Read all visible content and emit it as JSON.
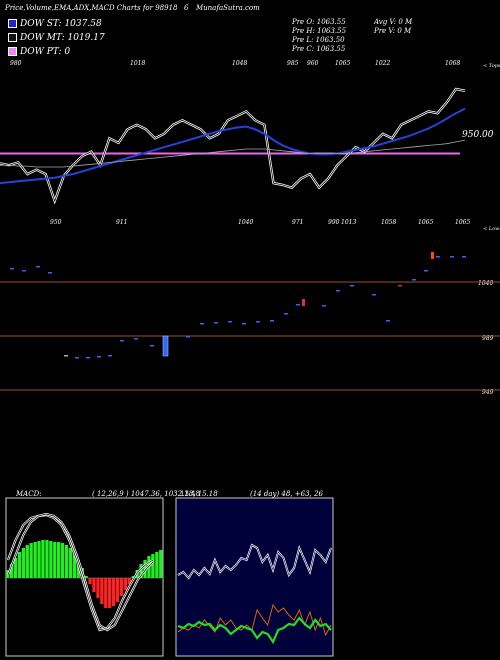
{
  "header": {
    "title": "Price,Volume,EMA,ADX,MACD Charts for 98918",
    "code": "6",
    "site": "MunafaSutra.com"
  },
  "legend": [
    {
      "label": "DOW ST: 1037.58",
      "color": "#2222cc"
    },
    {
      "label": "DOW MT: 1019.17",
      "color": "#111111"
    },
    {
      "label": "DOW PT: 0",
      "color": "#ee88ee"
    }
  ],
  "prev": {
    "open": "Pre   O: 1063.55",
    "high": "Pre   H: 1063.55",
    "low": "Pre   L: 1063.50",
    "close": "Pre   C: 1063.55",
    "avg_vol": "Avg V: 0   M",
    "prev_vol": "Pre   V: 0   M"
  },
  "price_panel": {
    "top_labels": [
      "980",
      "1018",
      "1048",
      "985",
      "960",
      "1065",
      "1022",
      "1068"
    ],
    "bottom_labels": [
      "950",
      "911",
      "1040",
      "971",
      "990",
      "1013",
      "1058",
      "1065"
    ],
    "right_label": "950.00",
    "top_tag": "< Tops",
    "bottom_tag": "< Lows"
  },
  "candle_panel": {
    "levels": [
      "1040",
      "989",
      "949"
    ]
  },
  "macd": {
    "label": "MACD:",
    "params": "( 12,26,9 ) 1047.36,  1032.18,  15.18",
    "suffix": "13.48"
  },
  "adx": {
    "params": "(14 day) 48,  +63,  26"
  },
  "chart_data": {
    "type": "line",
    "series": [
      {
        "values": [
          1002,
          1000,
          1003,
          990,
          995,
          990,
          960,
          988,
          1000,
          1010,
          1015,
          1000,
          1030,
          1025,
          1040,
          1045,
          1040,
          1030,
          1035,
          1045,
          1050,
          1045,
          1040,
          1030,
          1035,
          1050,
          1055,
          1060,
          1050,
          1045,
          980,
          978,
          975,
          985,
          990,
          975,
          985,
          1000,
          1010,
          1020,
          1015,
          1025,
          1035,
          1030,
          1045,
          1050,
          1055,
          1060,
          1058,
          1070,
          1085,
          1083
        ]
      },
      {
        "values": [
          980,
          981,
          982,
          983,
          984,
          985,
          986,
          988,
          990,
          993,
          996,
          999,
          1002,
          1005,
          1008,
          1011,
          1014,
          1017,
          1020,
          1023,
          1026,
          1029,
          1032,
          1035,
          1038,
          1040,
          1042,
          1043,
          1040,
          1035,
          1028,
          1022,
          1018,
          1015,
          1013,
          1012,
          1012,
          1013,
          1015,
          1017,
          1019,
          1021,
          1024,
          1027,
          1030,
          1033,
          1037,
          1041,
          1046,
          1052,
          1058,
          1063
        ]
      },
      {
        "values": [
          1000,
          1000,
          999,
          999,
          998,
          998,
          998,
          998,
          999,
          1000,
          1001,
          1002,
          1003,
          1004,
          1005,
          1006,
          1007,
          1008,
          1009,
          1010,
          1011,
          1012,
          1013,
          1014,
          1015,
          1016,
          1017,
          1018,
          1018,
          1018,
          1017,
          1016,
          1015,
          1014,
          1013,
          1013,
          1013,
          1013,
          1013,
          1014,
          1015,
          1016,
          1017,
          1018,
          1019,
          1020,
          1021,
          1022,
          1023,
          1024,
          1026,
          1028
        ]
      }
    ],
    "ema_pt_level": 1013
  }
}
